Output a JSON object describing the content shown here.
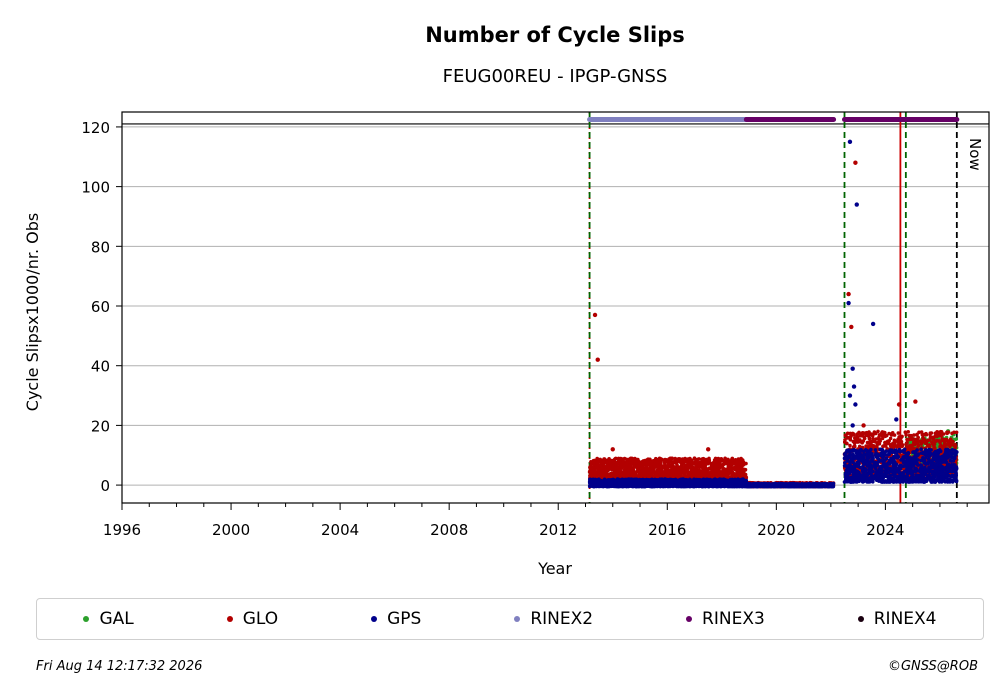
{
  "chart_data": {
    "type": "scatter",
    "title": "Number of Cycle Slips",
    "subtitle": "FEUG00REU - IPGP-GNSS",
    "xlabel": "Year",
    "ylabel": "Cycle Slipsx1000/nr. Obs",
    "xlim": [
      1996,
      2027.8
    ],
    "ylim": [
      -6,
      125
    ],
    "xticks": [
      1996,
      2000,
      2004,
      2008,
      2012,
      2016,
      2020,
      2024
    ],
    "yticks": [
      0,
      20,
      40,
      60,
      80,
      100,
      120
    ],
    "grid": "horizontal",
    "now_label": "Now",
    "now_x": 2026.62,
    "reference_line_y": 121,
    "vertical_lines": [
      {
        "x": 2013.15,
        "color": "#cc0000",
        "style": "dotted"
      },
      {
        "x": 2013.15,
        "color": "#006400",
        "style": "dashed"
      },
      {
        "x": 2022.5,
        "color": "#006400",
        "style": "dashed"
      },
      {
        "x": 2024.55,
        "color": "#cc0000",
        "style": "solid"
      },
      {
        "x": 2024.75,
        "color": "#006400",
        "style": "dashed"
      },
      {
        "x": 2026.62,
        "color": "#000000",
        "style": "dashed"
      }
    ],
    "rinex_bands": [
      {
        "name": "RINEX2",
        "x_start": 2013.15,
        "x_end": 2018.9,
        "y": 122.5,
        "color": "#8080c0"
      },
      {
        "name": "RINEX3",
        "x_start": 2018.9,
        "x_end": 2022.1,
        "y": 122.5,
        "color": "#660066"
      },
      {
        "name": "RINEX3",
        "x_start": 2022.5,
        "x_end": 2026.62,
        "y": 122.5,
        "color": "#660066"
      }
    ],
    "series": [
      {
        "name": "GAL",
        "color": "#2ca02c",
        "segments": [
          {
            "x_start": 2024.8,
            "x_end": 2026.62,
            "y_low": 4,
            "y_high": 16
          }
        ],
        "points": [
          {
            "x": 2026.3,
            "y": 18
          },
          {
            "x": 2026.5,
            "y": 17
          },
          {
            "x": 2025.7,
            "y": 15
          }
        ]
      },
      {
        "name": "GLO",
        "color": "#b30000",
        "segments": [
          {
            "x_start": 2013.15,
            "x_end": 2018.9,
            "y_low": 2,
            "y_high": 9
          },
          {
            "x_start": 2018.9,
            "x_end": 2022.1,
            "y_low": -0.5,
            "y_high": 0.8
          },
          {
            "x_start": 2022.5,
            "x_end": 2026.62,
            "y_low": 3,
            "y_high": 18
          }
        ],
        "points": [
          {
            "x": 2013.35,
            "y": 57
          },
          {
            "x": 2013.45,
            "y": 42
          },
          {
            "x": 2022.65,
            "y": 64
          },
          {
            "x": 2022.75,
            "y": 53
          },
          {
            "x": 2022.9,
            "y": 108
          },
          {
            "x": 2024.5,
            "y": 27
          },
          {
            "x": 2025.1,
            "y": 28
          },
          {
            "x": 2014.0,
            "y": 12
          },
          {
            "x": 2017.5,
            "y": 12
          },
          {
            "x": 2023.2,
            "y": 20
          }
        ]
      },
      {
        "name": "GPS",
        "color": "#00008b",
        "segments": [
          {
            "x_start": 2013.15,
            "x_end": 2018.9,
            "y_low": -0.5,
            "y_high": 2
          },
          {
            "x_start": 2018.9,
            "x_end": 2022.1,
            "y_low": -0.5,
            "y_high": 0.5
          },
          {
            "x_start": 2022.5,
            "x_end": 2026.62,
            "y_low": 1,
            "y_high": 12
          }
        ],
        "points": [
          {
            "x": 2022.7,
            "y": 115
          },
          {
            "x": 2022.95,
            "y": 94
          },
          {
            "x": 2022.65,
            "y": 61
          },
          {
            "x": 2023.55,
            "y": 54
          },
          {
            "x": 2022.8,
            "y": 39
          },
          {
            "x": 2022.85,
            "y": 33
          },
          {
            "x": 2022.7,
            "y": 30
          },
          {
            "x": 2022.9,
            "y": 27
          },
          {
            "x": 2022.8,
            "y": 20
          },
          {
            "x": 2024.4,
            "y": 22
          }
        ]
      },
      {
        "name": "RINEX2",
        "color": "#8080c0",
        "segments": [],
        "points": []
      },
      {
        "name": "RINEX3",
        "color": "#660066",
        "segments": [],
        "points": []
      },
      {
        "name": "RINEX4",
        "color": "#1a0010",
        "segments": [],
        "points": []
      }
    ]
  },
  "footer": {
    "timestamp": "Fri Aug 14 12:17:32 2026",
    "copyright": "©GNSS@ROB"
  }
}
